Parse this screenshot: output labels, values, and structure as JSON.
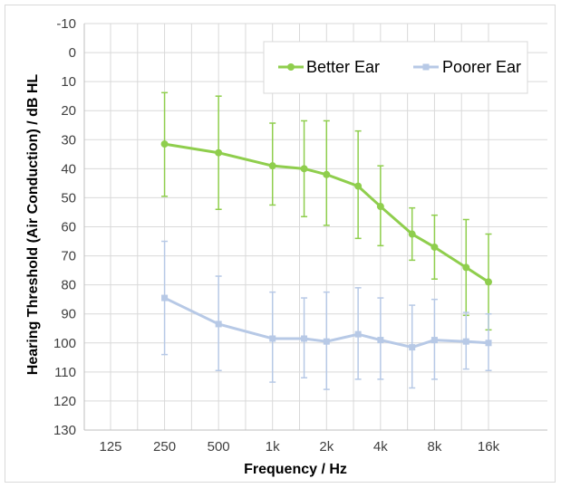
{
  "chart_data": {
    "type": "line",
    "xlabel": "Frequency / Hz",
    "ylabel": "Hearing Threshold (Air Conduction) / dB HL",
    "x_scale": "log2",
    "x_ticks": [
      125,
      250,
      500,
      1000,
      2000,
      4000,
      8000,
      16000
    ],
    "x_tick_labels": [
      "125",
      "250",
      "500",
      "1k",
      "2k",
      "4k",
      "8k",
      "16k"
    ],
    "y_ticks": [
      -10,
      0,
      10,
      20,
      30,
      40,
      50,
      60,
      70,
      80,
      90,
      100,
      110,
      120,
      130
    ],
    "y_tick_labels": [
      "-10",
      "0",
      "10",
      "20",
      "30",
      "40",
      "50",
      "60",
      "70",
      "80",
      "90",
      "100",
      "110",
      "120",
      "130"
    ],
    "ylim": [
      -10,
      130
    ],
    "y_inverted": true,
    "grid": true,
    "legend_position": "top-right",
    "series": [
      {
        "name": "Better Ear",
        "color": "#8fce4d",
        "marker": "circle",
        "x": [
          250,
          500,
          1000,
          1500,
          2000,
          3000,
          4000,
          6000,
          8000,
          12000,
          16000
        ],
        "y": [
          31.5,
          34.5,
          39,
          40,
          42,
          46,
          53,
          62.5,
          67,
          74,
          79
        ],
        "err_low": [
          13.8,
          15,
          24.3,
          23.5,
          23.5,
          27,
          39,
          53.5,
          56,
          57.5,
          62.5
        ],
        "err_high": [
          49.5,
          54,
          52.5,
          56.5,
          59.5,
          64,
          66.5,
          71.5,
          78,
          90.5,
          95.5
        ]
      },
      {
        "name": "Poorer Ear",
        "color": "#b7c9e6",
        "marker": "square",
        "x": [
          250,
          500,
          1000,
          1500,
          2000,
          3000,
          4000,
          6000,
          8000,
          12000,
          16000
        ],
        "y": [
          84.5,
          93.5,
          98.5,
          98.5,
          99.5,
          97,
          99,
          101.5,
          99,
          99.5,
          100
        ],
        "err_low": [
          65,
          77,
          82.5,
          84.5,
          82.5,
          81,
          84.5,
          87,
          85,
          89.5,
          90
        ],
        "err_high": [
          104,
          109.5,
          113.5,
          112,
          116,
          112.5,
          112.5,
          115.5,
          112.5,
          109,
          109.5
        ]
      }
    ]
  }
}
